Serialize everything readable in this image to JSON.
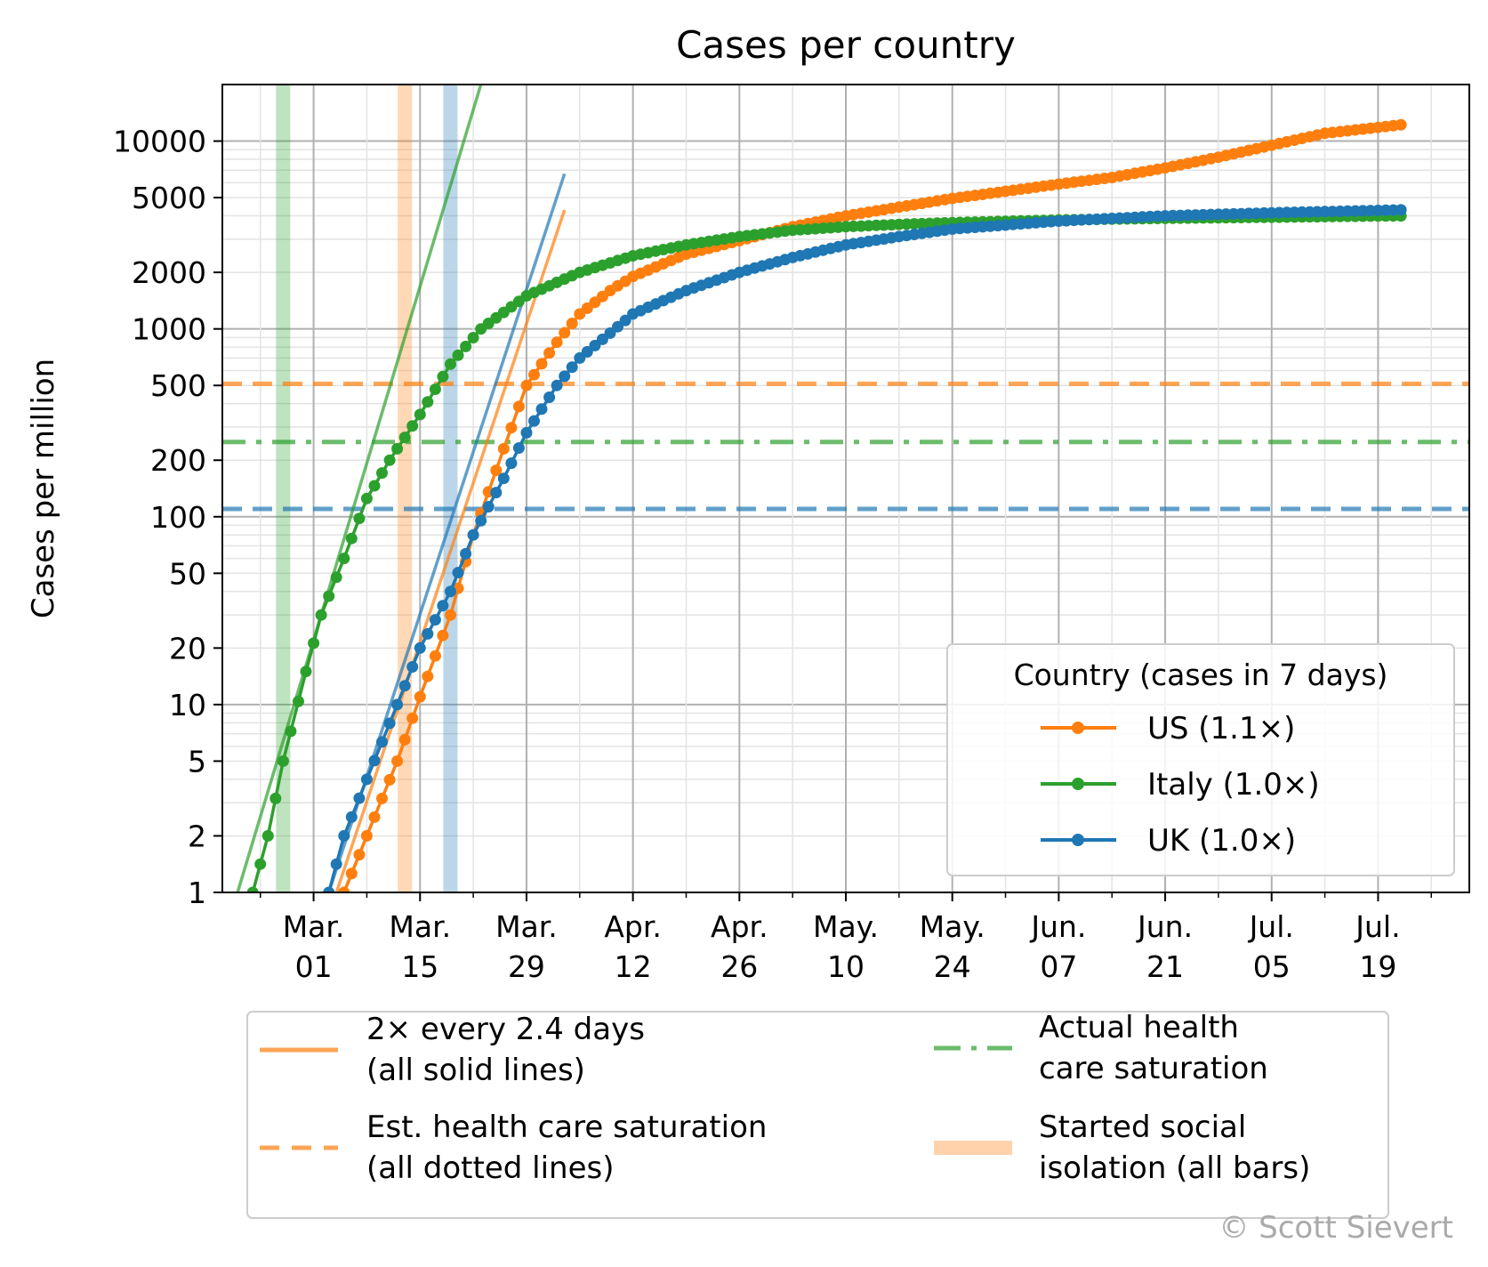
{
  "chart_data": {
    "type": "line",
    "title": "Cases per country",
    "ylabel": "Cases per million",
    "xlabel": "",
    "yscale": "log",
    "ylim": [
      1,
      20000
    ],
    "xlim": [
      "2020-02-18",
      "2020-07-31"
    ],
    "grid": true,
    "y_major_ticks": [
      1,
      10,
      100,
      1000,
      10000
    ],
    "y_ticks": [
      {
        "value": 1,
        "label": "1"
      },
      {
        "value": 2,
        "label": "2"
      },
      {
        "value": 5,
        "label": "5"
      },
      {
        "value": 10,
        "label": "10"
      },
      {
        "value": 20,
        "label": "20"
      },
      {
        "value": 50,
        "label": "50"
      },
      {
        "value": 100,
        "label": "100"
      },
      {
        "value": 200,
        "label": "200"
      },
      {
        "value": 500,
        "label": "500"
      },
      {
        "value": 1000,
        "label": "1000"
      },
      {
        "value": 2000,
        "label": "2000"
      },
      {
        "value": 5000,
        "label": "5000"
      },
      {
        "value": 10000,
        "label": "10000"
      }
    ],
    "x_ticks": [
      {
        "date": "2020-03-01",
        "month": "Mar.",
        "day": "01"
      },
      {
        "date": "2020-03-15",
        "month": "Mar.",
        "day": "15"
      },
      {
        "date": "2020-03-29",
        "month": "Mar.",
        "day": "29"
      },
      {
        "date": "2020-04-12",
        "month": "Apr.",
        "day": "12"
      },
      {
        "date": "2020-04-26",
        "month": "Apr.",
        "day": "26"
      },
      {
        "date": "2020-05-10",
        "month": "May.",
        "day": "10"
      },
      {
        "date": "2020-05-24",
        "month": "May.",
        "day": "24"
      },
      {
        "date": "2020-06-07",
        "month": "Jun.",
        "day": "07"
      },
      {
        "date": "2020-06-21",
        "month": "Jun.",
        "day": "21"
      },
      {
        "date": "2020-07-05",
        "month": "Jul.",
        "day": "05"
      },
      {
        "date": "2020-07-19",
        "month": "Jul.",
        "day": "19"
      }
    ],
    "legend_title": "Country (cases in 7 days)",
    "legend_position": "lower right",
    "series": [
      {
        "name": "US",
        "legend_label": "US (1.1×)",
        "color": "#ff7f0e",
        "points": [
          [
            "2020-03-05",
            1
          ],
          [
            "2020-03-08",
            2
          ],
          [
            "2020-03-12",
            5
          ],
          [
            "2020-03-15",
            11
          ],
          [
            "2020-03-19",
            30
          ],
          [
            "2020-03-22",
            80
          ],
          [
            "2020-03-26",
            230
          ],
          [
            "2020-03-29",
            500
          ],
          [
            "2020-04-02",
            850
          ],
          [
            "2020-04-05",
            1200
          ],
          [
            "2020-04-09",
            1600
          ],
          [
            "2020-04-12",
            1900
          ],
          [
            "2020-04-19",
            2500
          ],
          [
            "2020-04-26",
            2950
          ],
          [
            "2020-05-03",
            3500
          ],
          [
            "2020-05-10",
            4000
          ],
          [
            "2020-05-17",
            4450
          ],
          [
            "2020-05-24",
            4950
          ],
          [
            "2020-05-31",
            5400
          ],
          [
            "2020-06-07",
            5900
          ],
          [
            "2020-06-14",
            6400
          ],
          [
            "2020-06-21",
            7200
          ],
          [
            "2020-06-28",
            8200
          ],
          [
            "2020-07-05",
            9500
          ],
          [
            "2020-07-12",
            11000
          ],
          [
            "2020-07-22",
            12200
          ]
        ]
      },
      {
        "name": "Italy",
        "legend_label": "Italy (1.0×)",
        "color": "#2ca02c",
        "points": [
          [
            "2020-02-22",
            1
          ],
          [
            "2020-02-24",
            2
          ],
          [
            "2020-02-26",
            5
          ],
          [
            "2020-02-29",
            15
          ],
          [
            "2020-03-02",
            30
          ],
          [
            "2020-03-05",
            60
          ],
          [
            "2020-03-08",
            125
          ],
          [
            "2020-03-11",
            200
          ],
          [
            "2020-03-15",
            350
          ],
          [
            "2020-03-19",
            650
          ],
          [
            "2020-03-23",
            1000
          ],
          [
            "2020-03-29",
            1500
          ],
          [
            "2020-04-05",
            2000
          ],
          [
            "2020-04-12",
            2450
          ],
          [
            "2020-04-19",
            2800
          ],
          [
            "2020-04-26",
            3100
          ],
          [
            "2020-05-03",
            3350
          ],
          [
            "2020-05-10",
            3500
          ],
          [
            "2020-05-17",
            3600
          ],
          [
            "2020-05-24",
            3680
          ],
          [
            "2020-06-07",
            3800
          ],
          [
            "2020-06-21",
            3880
          ],
          [
            "2020-07-05",
            3930
          ],
          [
            "2020-07-22",
            4000
          ]
        ]
      },
      {
        "name": "UK",
        "legend_label": "UK (1.0×)",
        "color": "#1f77b4",
        "points": [
          [
            "2020-03-03",
            1
          ],
          [
            "2020-03-05",
            2
          ],
          [
            "2020-03-08",
            4
          ],
          [
            "2020-03-12",
            10
          ],
          [
            "2020-03-15",
            20
          ],
          [
            "2020-03-19",
            40
          ],
          [
            "2020-03-22",
            80
          ],
          [
            "2020-03-26",
            160
          ],
          [
            "2020-03-29",
            280
          ],
          [
            "2020-04-02",
            500
          ],
          [
            "2020-04-05",
            700
          ],
          [
            "2020-04-09",
            950
          ],
          [
            "2020-04-12",
            1200
          ],
          [
            "2020-04-19",
            1600
          ],
          [
            "2020-04-26",
            2000
          ],
          [
            "2020-05-03",
            2400
          ],
          [
            "2020-05-10",
            2800
          ],
          [
            "2020-05-17",
            3100
          ],
          [
            "2020-05-24",
            3400
          ],
          [
            "2020-06-07",
            3750
          ],
          [
            "2020-06-21",
            4000
          ],
          [
            "2020-07-05",
            4150
          ],
          [
            "2020-07-22",
            4300
          ]
        ]
      }
    ],
    "trend_lines": [
      {
        "country": "Italy",
        "color": "#2ca02c",
        "from": [
          "2020-02-20",
          1
        ],
        "to": [
          "2020-03-23",
          20000
        ]
      },
      {
        "country": "US",
        "color": "#ff7f0e",
        "from": [
          "2020-03-04",
          1
        ],
        "to": [
          "2020-04-03",
          4300
        ]
      },
      {
        "country": "UK",
        "color": "#1f77b4",
        "from": [
          "2020-03-03",
          1
        ],
        "to": [
          "2020-04-03",
          6700
        ]
      }
    ],
    "saturation_lines": [
      {
        "country": "US",
        "color": "#ff7f0e",
        "value": 510,
        "style": "dashed"
      },
      {
        "country": "Italy",
        "color": "#2ca02c",
        "value": 250,
        "style": "dashdot"
      },
      {
        "country": "UK",
        "color": "#1f77b4",
        "value": 110,
        "style": "dashed"
      }
    ],
    "isolation_bars": [
      {
        "country": "Italy",
        "color": "#2ca02c",
        "date": "2020-02-26"
      },
      {
        "country": "US",
        "color": "#ff7f0e",
        "date": "2020-03-13"
      },
      {
        "country": "UK",
        "color": "#1f77b4",
        "date": "2020-03-19"
      }
    ],
    "key_legend": [
      {
        "kind": "solid",
        "color": "#ff7f0e",
        "line1": "2× every 2.4 days",
        "line2": "(all solid lines)"
      },
      {
        "kind": "dashed",
        "color": "#ff7f0e",
        "line1": "Est. health care saturation",
        "line2": "(all dotted lines)"
      },
      {
        "kind": "dashdot",
        "color": "#2ca02c",
        "line1": "Actual health",
        "line2": "care saturation"
      },
      {
        "kind": "bar",
        "color": "#ff7f0e",
        "line1": "Started social",
        "line2": "isolation (all bars)"
      }
    ],
    "watermark": "© Scott Sievert"
  }
}
